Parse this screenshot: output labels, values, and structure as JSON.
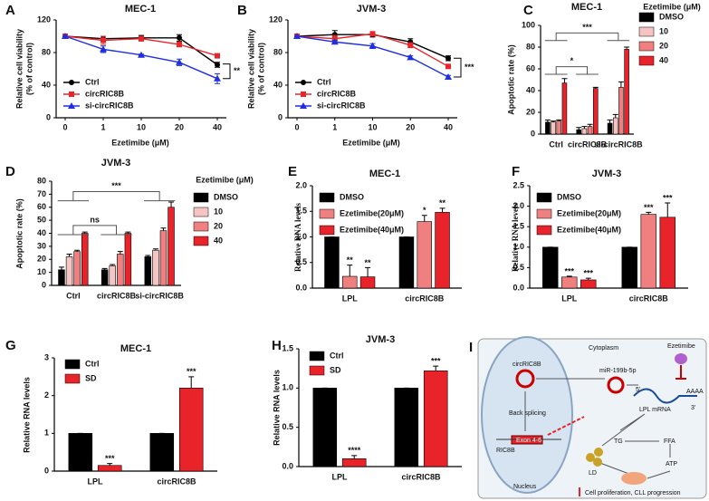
{
  "chart_data": [
    {
      "panel": "A",
      "type": "line",
      "title": "MEC-1",
      "ylabel": [
        "Relative cell viability",
        "(% of control)"
      ],
      "xlabel": "Ezetimibe (μM)",
      "categories": [
        "0",
        "1",
        "10",
        "20",
        "40"
      ],
      "ylim": [
        0,
        120
      ],
      "yticks": [
        0,
        40,
        80,
        120
      ],
      "annotations": [
        "**"
      ],
      "series": [
        {
          "name": "Ctrl",
          "color": "#000000",
          "marker": "circle",
          "values": [
            100,
            97,
            98,
            98,
            65
          ],
          "errors": [
            0,
            3,
            3,
            4,
            3
          ]
        },
        {
          "name": "circRIC8B",
          "color": "#e8262a",
          "marker": "square",
          "values": [
            100,
            95,
            97,
            90,
            76
          ],
          "errors": [
            0,
            5,
            3,
            3,
            2
          ]
        },
        {
          "name": "si-circRIC8B",
          "color": "#1f2ee0",
          "marker": "triangle",
          "values": [
            100,
            84,
            77,
            68,
            48
          ],
          "errors": [
            0,
            4,
            1,
            4,
            6
          ]
        }
      ]
    },
    {
      "panel": "B",
      "type": "line",
      "title": "JVM-3",
      "ylabel": [
        "Relative cell viability",
        "(% of control)"
      ],
      "xlabel": "Ezetimibe (μM)",
      "categories": [
        "0",
        "1",
        "10",
        "20",
        "40"
      ],
      "ylim": [
        0,
        120
      ],
      "yticks": [
        0,
        40,
        80,
        120
      ],
      "annotations": [
        "***"
      ],
      "series": [
        {
          "name": "Ctrl",
          "color": "#000000",
          "marker": "circle",
          "values": [
            100,
            102,
            102,
            93,
            73
          ],
          "errors": [
            0,
            5,
            3,
            4,
            3
          ]
        },
        {
          "name": "circRIC8B",
          "color": "#e8262a",
          "marker": "square",
          "values": [
            100,
            97,
            103,
            89,
            63
          ],
          "errors": [
            0,
            4,
            2,
            3,
            2
          ]
        },
        {
          "name": "si-circRIC8B",
          "color": "#1f2ee0",
          "marker": "triangle",
          "values": [
            100,
            93,
            88,
            74,
            50
          ],
          "errors": [
            0,
            2,
            3,
            2,
            2
          ]
        }
      ]
    },
    {
      "panel": "C",
      "type": "bar",
      "title": "MEC-1",
      "ylabel": "Apoptotic rate (%)",
      "legend_title": "Ezetimibe (μM)",
      "categories": [
        "Ctrl",
        "circRIC8B",
        "si-circRIC8B"
      ],
      "ylim": [
        0,
        100
      ],
      "yticks": [
        0,
        20,
        40,
        60,
        80,
        100
      ],
      "annotations": [
        "***",
        "*"
      ],
      "series": [
        {
          "name": "DMSO",
          "color": "#000000",
          "values": [
            11,
            4,
            10
          ],
          "errors": [
            2,
            2,
            3
          ]
        },
        {
          "name": "10",
          "color": "#f7c4c4",
          "values": [
            11,
            5,
            15
          ],
          "errors": [
            1,
            2,
            3
          ]
        },
        {
          "name": "20",
          "color": "#f08080",
          "values": [
            12,
            7,
            43
          ],
          "errors": [
            1,
            2,
            5
          ]
        },
        {
          "name": "40",
          "color": "#e8232a",
          "values": [
            47,
            42,
            78
          ],
          "errors": [
            4,
            1,
            2
          ]
        }
      ]
    },
    {
      "panel": "D",
      "type": "bar",
      "title": "JVM-3",
      "ylabel": "Apoptotic rate (%)",
      "legend_title": "Ezetimibe (μM)",
      "categories": [
        "Ctrl",
        "circRIC8B",
        "si-circRIC8B"
      ],
      "ylim": [
        0,
        80
      ],
      "yticks": [
        0,
        10,
        20,
        30,
        40,
        50,
        60,
        70,
        80
      ],
      "annotations": [
        "***",
        "ns"
      ],
      "series": [
        {
          "name": "DMSO",
          "color": "#000000",
          "values": [
            12,
            12,
            22
          ],
          "errors": [
            2,
            1,
            1
          ]
        },
        {
          "name": "10",
          "color": "#f7c4c4",
          "values": [
            22,
            15,
            27
          ],
          "errors": [
            2,
            1,
            1
          ]
        },
        {
          "name": "20",
          "color": "#f08080",
          "values": [
            26,
            24,
            42
          ],
          "errors": [
            1,
            2,
            2
          ]
        },
        {
          "name": "40",
          "color": "#e8232a",
          "values": [
            40,
            40,
            60
          ],
          "errors": [
            1,
            1,
            4
          ]
        }
      ]
    },
    {
      "panel": "E",
      "type": "bar",
      "title": "MEC-1",
      "ylabel": "Relative RNA levels",
      "categories": [
        "LPL",
        "circRIC8B"
      ],
      "ylim": [
        0,
        2
      ],
      "yticks": [
        {
          "value": 0,
          "label": "0.0"
        },
        0.5,
        {
          "value": 1,
          "label": "1.0"
        },
        1.5,
        {
          "value": 2,
          "label": "2.0"
        }
      ],
      "series": [
        {
          "name": "DMSO",
          "color": "#000000",
          "values": [
            1,
            1
          ],
          "errors": [
            0,
            0
          ],
          "significance": [
            null,
            null
          ]
        },
        {
          "name": "Ezetimibe(20μM)",
          "color": "#f08080",
          "values": [
            0.23,
            1.3
          ],
          "errors": [
            0.22,
            0.12
          ],
          "significance": [
            "**",
            "*"
          ]
        },
        {
          "name": "Ezetimibe(40μM)",
          "color": "#e8232a",
          "values": [
            0.22,
            1.48
          ],
          "errors": [
            0.18,
            0.08
          ],
          "significance": [
            "**",
            "**"
          ]
        }
      ]
    },
    {
      "panel": "F",
      "type": "bar",
      "title": "JVM-3",
      "ylabel": "Relative RNA levels",
      "categories": [
        "LPL",
        "circRIC8B"
      ],
      "ylim": [
        0,
        2.5
      ],
      "yticks": [
        {
          "value": 0,
          "label": "0.0"
        },
        0.5,
        {
          "value": 1,
          "label": "1.0"
        },
        1.5,
        {
          "value": 2,
          "label": "2.0"
        },
        2.5
      ],
      "series": [
        {
          "name": "DMSO",
          "color": "#000000",
          "values": [
            1,
            1
          ],
          "errors": [
            0,
            0
          ],
          "significance": [
            null,
            null
          ]
        },
        {
          "name": "Ezetimibe(20μM)",
          "color": "#f08080",
          "values": [
            0.27,
            1.8
          ],
          "errors": [
            0.02,
            0.05
          ],
          "significance": [
            "***",
            "***"
          ]
        },
        {
          "name": "Ezetimibe(40μM)",
          "color": "#e8232a",
          "values": [
            0.2,
            1.73
          ],
          "errors": [
            0.04,
            0.35
          ],
          "significance": [
            "***",
            "***"
          ]
        }
      ]
    },
    {
      "panel": "G",
      "type": "bar",
      "title": "MEC-1",
      "ylabel": "Relative RNA levels",
      "categories": [
        "LPL",
        "circRIC8B"
      ],
      "ylim": [
        0,
        3
      ],
      "yticks": [
        0,
        1,
        2,
        3
      ],
      "series": [
        {
          "name": "Ctrl",
          "color": "#000000",
          "values": [
            1,
            1
          ],
          "errors": [
            0,
            0
          ],
          "significance": [
            null,
            null
          ]
        },
        {
          "name": "SD",
          "color": "#e8232a",
          "values": [
            0.15,
            2.2
          ],
          "errors": [
            0.05,
            0.3
          ],
          "significance": [
            "***",
            "***"
          ]
        }
      ]
    },
    {
      "panel": "H",
      "type": "bar",
      "title": "JVM-3",
      "ylabel": "Relative RNA levels",
      "categories": [
        "LPL",
        "circRIC8B"
      ],
      "ylim": [
        0,
        1.5
      ],
      "yticks": [
        {
          "value": 0,
          "label": "0.0"
        },
        0.5,
        {
          "value": 1,
          "label": "1.0"
        },
        1.5
      ],
      "series": [
        {
          "name": "Ctrl",
          "color": "#000000",
          "values": [
            1,
            1
          ],
          "errors": [
            0,
            0
          ],
          "significance": [
            null,
            null
          ]
        },
        {
          "name": "SD",
          "color": "#e8232a",
          "values": [
            0.1,
            1.22
          ],
          "errors": [
            0.04,
            0.06
          ],
          "significance": [
            "****",
            "***"
          ]
        }
      ]
    }
  ],
  "diagram": {
    "panel": "I",
    "cytoplasm": "Cytoplasm",
    "circ": "circRIC8B",
    "mirna": "miR-199b-5p",
    "drug": "Ezetimibe",
    "five": "5'",
    "three": "3'",
    "polya": "AAAA",
    "mrna": "LPL mRNA",
    "splicing": "Back splicing",
    "exon": "Exon 4-6",
    "gene": "RIC8B",
    "tg": "TG",
    "ffa": "FFA",
    "ld": "LD",
    "atp": "ATP",
    "nucleus": "Nucleus",
    "outcome": "Cell proliferation, CLL progression"
  }
}
